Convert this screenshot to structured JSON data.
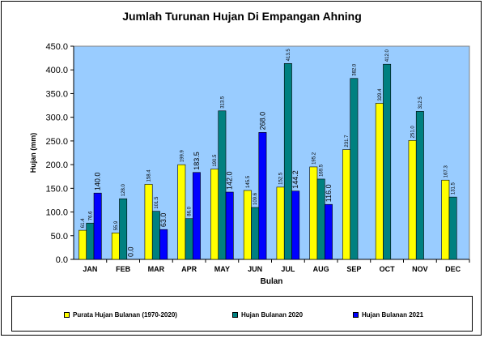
{
  "chart_data": {
    "type": "bar",
    "title": "Jumlah Turunan Hujan Di Empangan Ahning",
    "xlabel": "Bulan",
    "ylabel": "Hujan (mm)",
    "ylim": [
      0,
      450
    ],
    "yticks": [
      "0.0",
      "50.0",
      "100.0",
      "150.0",
      "200.0",
      "250.0",
      "300.0",
      "350.0",
      "400.0",
      "450.0"
    ],
    "categories": [
      "JAN",
      "FEB",
      "MAR",
      "APR",
      "MAY",
      "JUN",
      "JUL",
      "AUG",
      "SEP",
      "OCT",
      "NOV",
      "DEC"
    ],
    "grid": false,
    "legend_position": "bottom",
    "plot_background": "#99CCFF",
    "series": [
      {
        "name": "Purata Hujan Bulanan (1970-2020)",
        "color": "#FFFF00",
        "values": [
          61.4,
          55.9,
          158.4,
          199.9,
          190.5,
          145.5,
          152.5,
          195.2,
          231.7,
          329.4,
          251.0,
          167.3
        ],
        "labels": [
          "61.4",
          "55.9",
          "158.4",
          "199.9",
          "190.5",
          "145.5",
          "152.5",
          "195.2",
          "231.7",
          "329.4",
          "251.0",
          "167.3"
        ]
      },
      {
        "name": "Hujan Bulanan 2020",
        "color": "#008080",
        "values": [
          76.6,
          128.0,
          101.5,
          86.0,
          313.5,
          109.6,
          413.5,
          169.5,
          382.0,
          412.0,
          312.5,
          131.5
        ],
        "labels": [
          "76.6",
          "128.0",
          "101.5",
          "86.0",
          "313.5",
          "109.6",
          "413.5",
          "169.5",
          "382.0",
          "412.0",
          "312.5",
          "131.5"
        ]
      },
      {
        "name": "Hujan Bulanan 2021",
        "color": "#0000FF",
        "values": [
          140.0,
          0.0,
          63.0,
          183.5,
          142.0,
          268.0,
          144.2,
          116.0,
          null,
          null,
          null,
          null
        ],
        "labels": [
          "140.0",
          "0.0",
          "63.0",
          "183.5",
          "142.0",
          "268.0",
          "144.2",
          "116.0",
          null,
          null,
          null,
          null
        ]
      }
    ]
  }
}
